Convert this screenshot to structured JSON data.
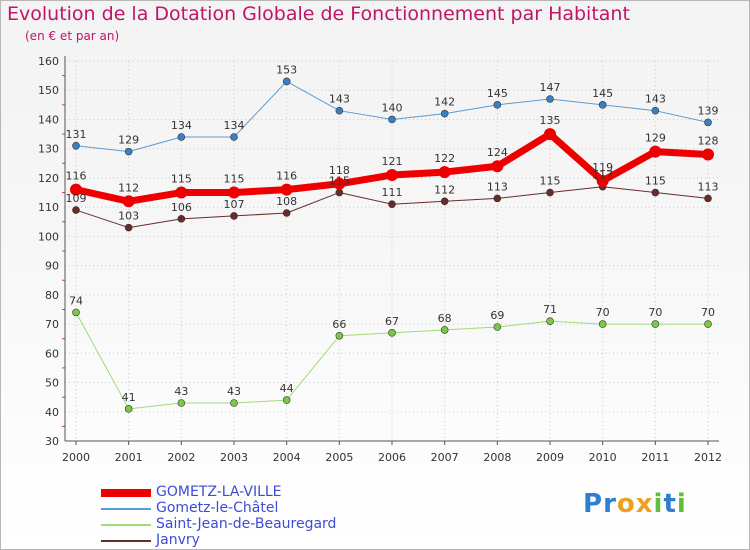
{
  "header": {
    "title": "Evolution de la Dotation Globale de Fonctionnement par Habitant",
    "subtitle": "(en € et par an)"
  },
  "colors": {
    "title": "#c0146a",
    "legend_text": "#3d4bd6",
    "grid": "#c8c8c8"
  },
  "chart_data": {
    "type": "line",
    "title": "Evolution de la Dotation Globale de Fonctionnement par Habitant",
    "subtitle": "(en € et par an)",
    "xlabel": "",
    "ylabel": "",
    "ylim": [
      30,
      160
    ],
    "yticks": [
      30,
      40,
      50,
      60,
      70,
      80,
      90,
      100,
      110,
      120,
      130,
      140,
      150,
      160
    ],
    "grid": true,
    "legend_position": "bottom-left",
    "categories": [
      "2000",
      "2001",
      "2002",
      "2003",
      "2004",
      "2005",
      "2006",
      "2007",
      "2008",
      "2009",
      "2010",
      "2011",
      "2012"
    ],
    "series": [
      {
        "name": "Janvry",
        "color": "#6b2a2a",
        "marker": "#6b2a2a",
        "width": 1,
        "values": [
          109,
          103,
          106,
          107,
          108,
          115,
          111,
          112,
          113,
          115,
          117,
          115,
          113
        ]
      },
      {
        "name": "Saint-Jean-de-Beauregard",
        "color": "#9fdc77",
        "marker": "#7ac943",
        "width": 1,
        "values": [
          74,
          41,
          43,
          43,
          44,
          66,
          67,
          68,
          69,
          71,
          70,
          70,
          70
        ]
      },
      {
        "name": "Gometz-le-Châtel",
        "color": "#5b9bd5",
        "marker": "#3a7fc4",
        "width": 1,
        "values": [
          131,
          129,
          134,
          134,
          153,
          143,
          140,
          142,
          145,
          147,
          145,
          143,
          139
        ]
      },
      {
        "name": "GOMETZ-LA-VILLE",
        "color": "#ee0000",
        "marker": "#ee0000",
        "width": 7,
        "values": [
          116,
          112,
          115,
          115,
          116,
          118,
          121,
          122,
          124,
          135,
          119,
          129,
          128
        ]
      }
    ],
    "legend_order": [
      "GOMETZ-LA-VILLE",
      "Gometz-le-Châtel",
      "Saint-Jean-de-Beauregard",
      "Janvry"
    ]
  },
  "brand": {
    "letters": [
      {
        "ch": "P",
        "color": "#2e7fd0"
      },
      {
        "ch": "r",
        "color": "#2e7fd0"
      },
      {
        "ch": "o",
        "color": "#f0a020"
      },
      {
        "ch": "x",
        "color": "#f0a020"
      },
      {
        "ch": "i",
        "color": "#5fbf3a"
      },
      {
        "ch": "t",
        "color": "#2e7fd0"
      },
      {
        "ch": "i",
        "color": "#5fbf3a"
      }
    ]
  }
}
